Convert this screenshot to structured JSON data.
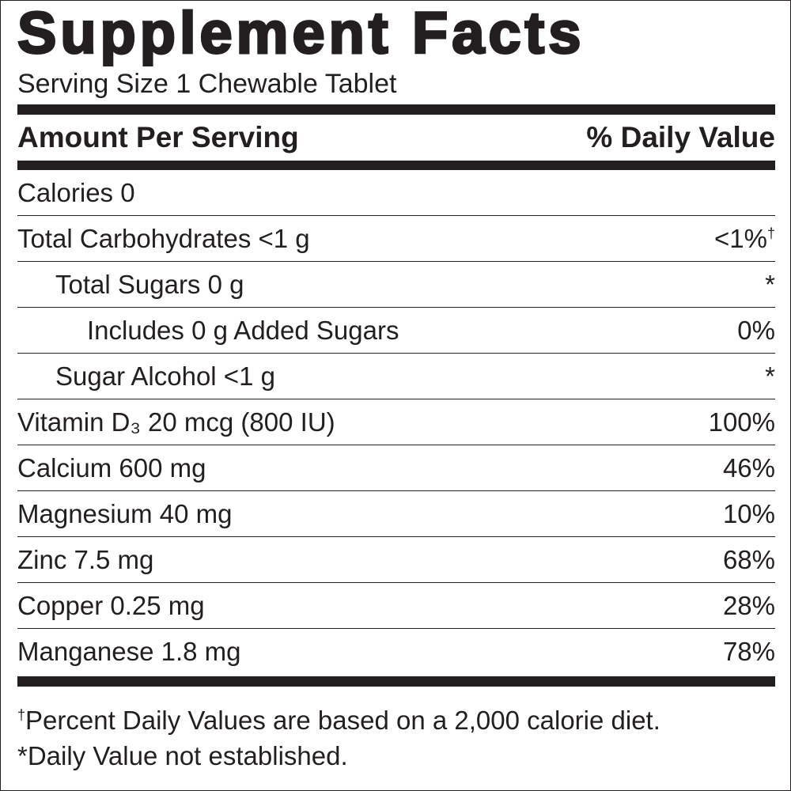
{
  "title": "Supplement Facts",
  "serving_size": "Serving Size 1 Chewable Tablet",
  "header": {
    "amount": "Amount Per Serving",
    "daily_value": "% Daily Value"
  },
  "rows": [
    {
      "label": "Calories 0"
    },
    {
      "label": "Total Carbohydrates <1 g",
      "daily_value": "<1%",
      "note": "†",
      "sub": [
        {
          "label": "Total Sugars 0 g",
          "daily_value": "*",
          "sub": [
            {
              "label": "Includes 0 g Added Sugars",
              "daily_value": "0%"
            }
          ]
        },
        {
          "label": "Sugar Alcohol <1 g",
          "daily_value": "*"
        }
      ]
    },
    {
      "label": "Vitamin D₃ 20 mcg (800 IU)",
      "daily_value": "100%"
    },
    {
      "label": "Calcium 600 mg",
      "daily_value": "46%"
    },
    {
      "label": "Magnesium 40 mg",
      "daily_value": "10%"
    },
    {
      "label": "Zinc 7.5 mg",
      "daily_value": "68%"
    },
    {
      "label": "Copper 0.25 mg",
      "daily_value": "28%"
    },
    {
      "label": "Manganese 1.8 mg",
      "daily_value": "78%"
    }
  ],
  "footnotes": [
    {
      "mark": "†",
      "text": "Percent Daily Values are based on a 2,000 calorie diet."
    },
    {
      "text": "*Daily Value not established."
    }
  ]
}
